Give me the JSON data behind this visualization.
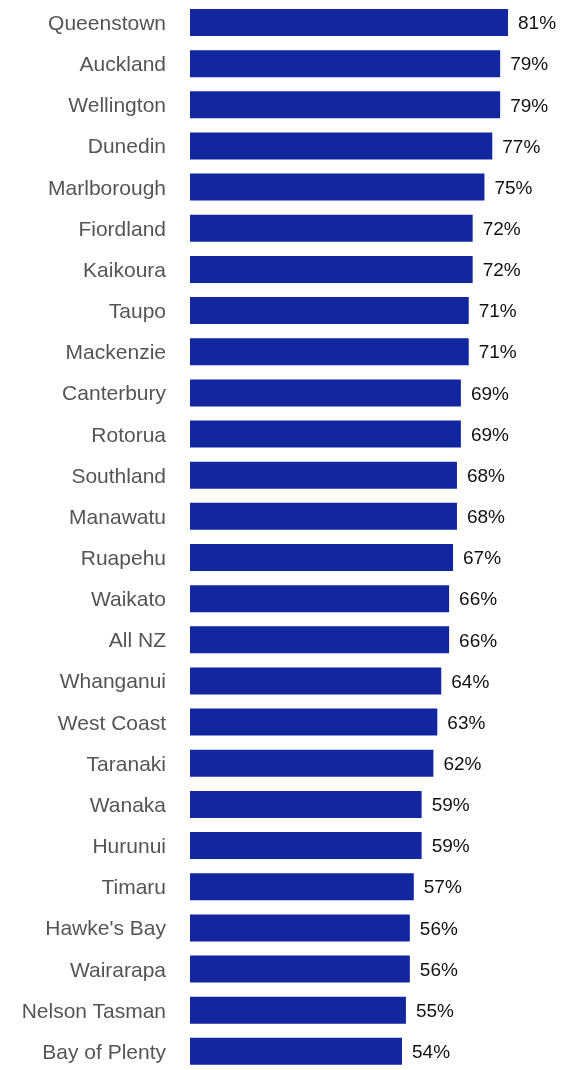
{
  "chart_data": {
    "type": "bar",
    "orientation": "horizontal",
    "categories": [
      "Queenstown",
      "Auckland",
      "Wellington",
      "Dunedin",
      "Marlborough",
      "Fiordland",
      "Kaikoura",
      "Taupo",
      "Mackenzie",
      "Canterbury",
      "Rotorua",
      "Southland",
      "Manawatu",
      "Ruapehu",
      "Waikato",
      "All NZ",
      "Whanganui",
      "West Coast",
      "Taranaki",
      "Wanaka",
      "Hurunui",
      "Timaru",
      "Hawke's Bay",
      "Wairarapa",
      "Nelson Tasman",
      "Bay of Plenty"
    ],
    "values": [
      81,
      79,
      79,
      77,
      75,
      72,
      72,
      71,
      71,
      69,
      69,
      68,
      68,
      67,
      66,
      66,
      64,
      63,
      62,
      59,
      59,
      57,
      56,
      56,
      55,
      54
    ],
    "value_labels": [
      "81%",
      "79%",
      "79%",
      "77%",
      "75%",
      "72%",
      "72%",
      "71%",
      "71%",
      "69%",
      "69%",
      "68%",
      "68%",
      "67%",
      "66%",
      "66%",
      "64%",
      "63%",
      "62%",
      "59%",
      "59%",
      "57%",
      "56%",
      "56%",
      "55%",
      "54%"
    ],
    "color": "#1226a0"
  }
}
